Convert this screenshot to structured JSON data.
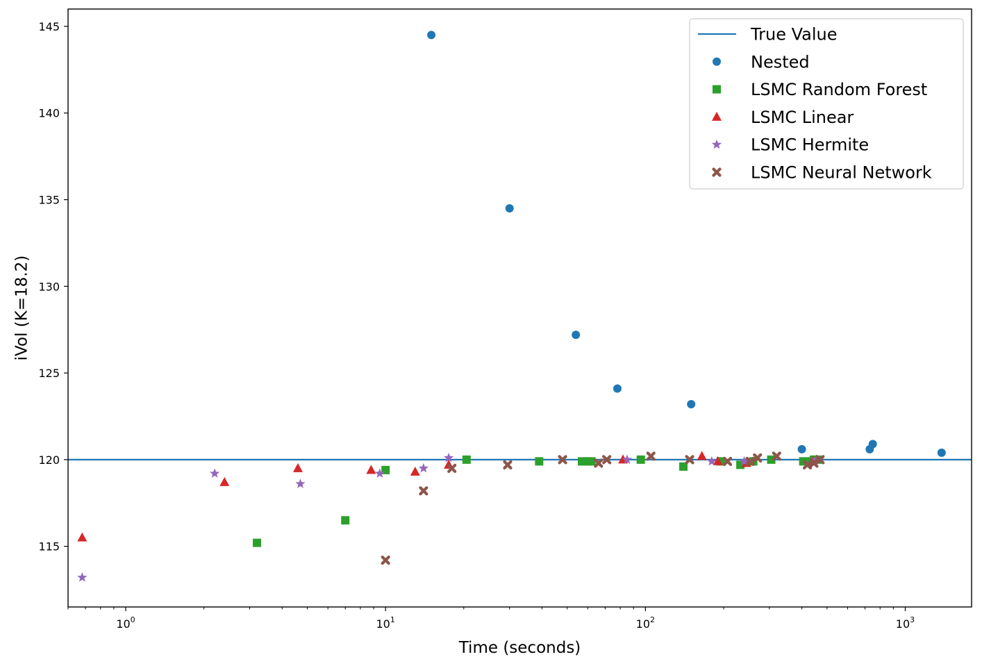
{
  "chart_data": {
    "type": "scatter",
    "xlabel": "Time (seconds)",
    "ylabel": "iVol (K=18.2)",
    "x_scale": "log",
    "xlim": [
      0.6,
      1800
    ],
    "ylim": [
      111.5,
      146
    ],
    "x_ticks": [
      {
        "value": 1,
        "base": "10",
        "exp": "0"
      },
      {
        "value": 10,
        "base": "10",
        "exp": "1"
      },
      {
        "value": 100,
        "base": "10",
        "exp": "2"
      },
      {
        "value": 1000,
        "base": "10",
        "exp": "3"
      }
    ],
    "y_ticks": [
      {
        "value": 115,
        "label": "115"
      },
      {
        "value": 120,
        "label": "120"
      },
      {
        "value": 125,
        "label": "125"
      },
      {
        "value": 130,
        "label": "130"
      },
      {
        "value": 135,
        "label": "135"
      },
      {
        "value": 140,
        "label": "140"
      },
      {
        "value": 145,
        "label": "145"
      }
    ],
    "grid": false,
    "legend_position": "top-right",
    "reference_line": {
      "name": "True Value",
      "y": 120,
      "color": "#1f77b4"
    },
    "series": [
      {
        "name": "Nested",
        "marker": "circle",
        "color": "#1f77b4",
        "points": [
          [
            15,
            144.5
          ],
          [
            30,
            134.5
          ],
          [
            54,
            127.2
          ],
          [
            78,
            124.1
          ],
          [
            150,
            123.2
          ],
          [
            400,
            120.6
          ],
          [
            730,
            120.6
          ],
          [
            750,
            120.9
          ],
          [
            1380,
            120.4
          ]
        ]
      },
      {
        "name": "LSMC Random Forest",
        "marker": "square",
        "color": "#2ca02c",
        "points": [
          [
            3.2,
            115.2
          ],
          [
            7,
            116.5
          ],
          [
            10,
            119.4
          ],
          [
            20.5,
            120.0
          ],
          [
            39,
            119.9
          ],
          [
            57,
            119.9
          ],
          [
            60,
            119.9
          ],
          [
            62,
            119.9
          ],
          [
            96,
            120.0
          ],
          [
            140,
            119.6
          ],
          [
            195,
            119.9
          ],
          [
            232,
            119.7
          ],
          [
            260,
            119.9
          ],
          [
            305,
            120.0
          ],
          [
            405,
            119.9
          ],
          [
            425,
            119.9
          ],
          [
            445,
            120.0
          ],
          [
            460,
            120.0
          ]
        ]
      },
      {
        "name": "LSMC Linear",
        "marker": "triangle",
        "color": "#d62728",
        "points": [
          [
            0.68,
            115.5
          ],
          [
            2.4,
            118.7
          ],
          [
            4.6,
            119.5
          ],
          [
            8.8,
            119.4
          ],
          [
            13,
            119.3
          ],
          [
            17.5,
            119.7
          ],
          [
            82,
            120.0
          ],
          [
            165,
            120.2
          ],
          [
            190,
            119.9
          ],
          [
            245,
            119.8
          ],
          [
            440,
            119.9
          ]
        ]
      },
      {
        "name": "LSMC Hermite",
        "marker": "star",
        "color": "#9467bd",
        "points": [
          [
            0.68,
            113.2
          ],
          [
            2.2,
            119.2
          ],
          [
            4.7,
            118.6
          ],
          [
            9.5,
            119.2
          ],
          [
            14,
            119.5
          ],
          [
            17.5,
            120.1
          ],
          [
            85,
            120.0
          ],
          [
            180,
            119.9
          ],
          [
            240,
            119.9
          ],
          [
            455,
            120.0
          ]
        ]
      },
      {
        "name": "LSMC Neural Network",
        "marker": "x",
        "color": "#8c564b",
        "points": [
          [
            10,
            114.2
          ],
          [
            14,
            118.2
          ],
          [
            18,
            119.5
          ],
          [
            29.5,
            119.7
          ],
          [
            48,
            120.0
          ],
          [
            66,
            119.8
          ],
          [
            71,
            120.0
          ],
          [
            105,
            120.2
          ],
          [
            148,
            120.0
          ],
          [
            207,
            119.9
          ],
          [
            253,
            119.9
          ],
          [
            270,
            120.1
          ],
          [
            320,
            120.2
          ],
          [
            420,
            119.7
          ],
          [
            445,
            119.8
          ],
          [
            470,
            120.0
          ]
        ]
      }
    ]
  }
}
